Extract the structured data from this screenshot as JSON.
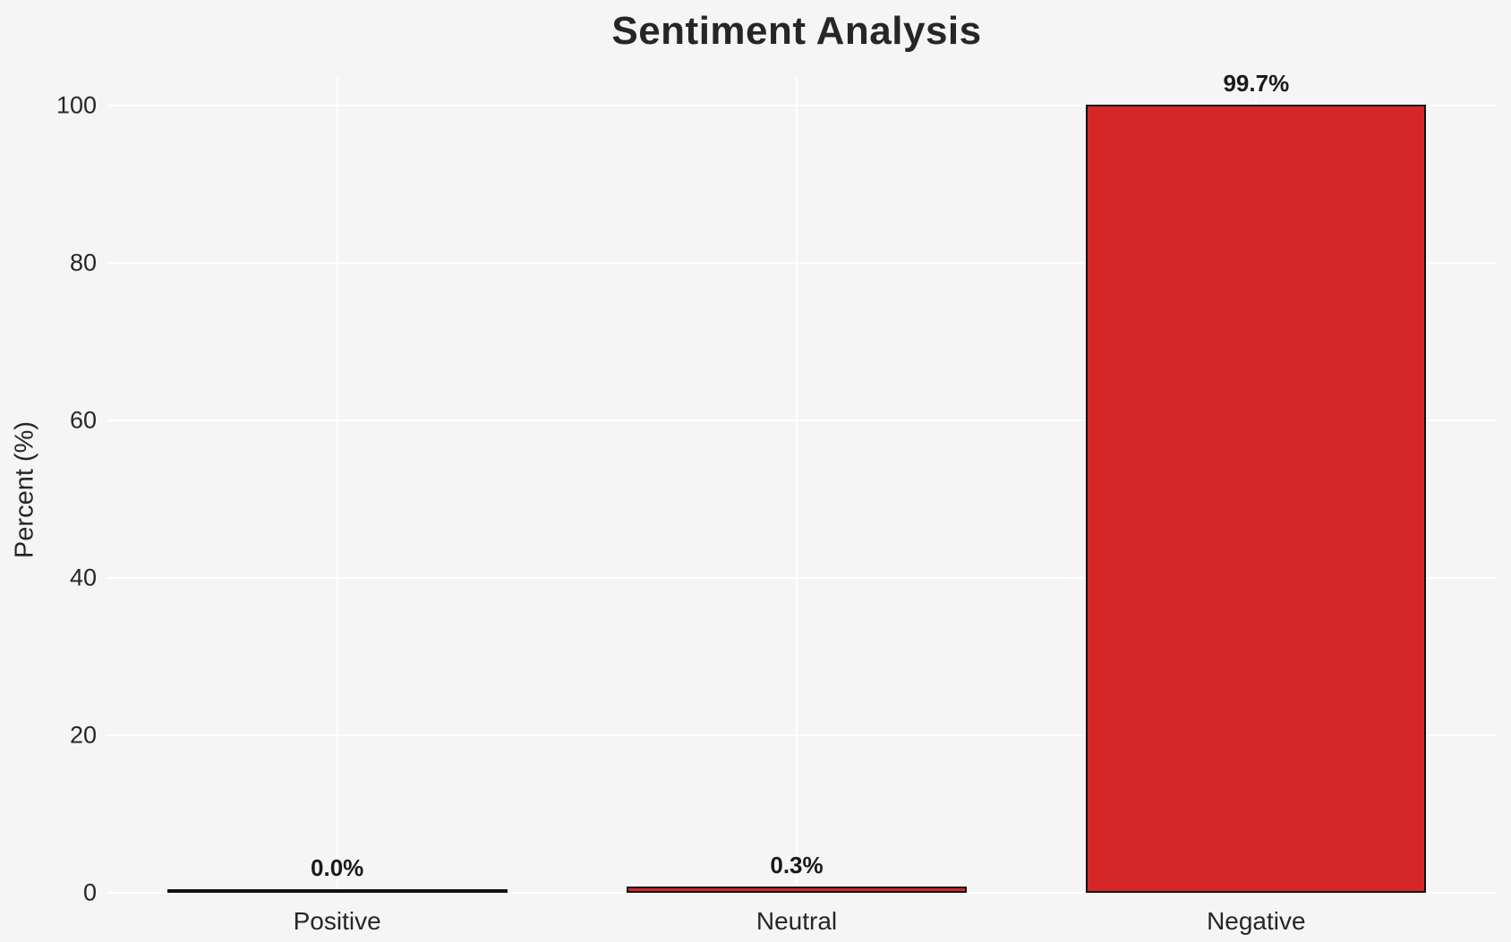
{
  "chart_data": {
    "type": "bar",
    "title": "Sentiment Analysis",
    "categories": [
      "Positive",
      "Neutral",
      "Negative"
    ],
    "values": [
      0.0,
      0.3,
      99.7
    ],
    "value_labels": [
      "0.0%",
      "0.3%",
      "99.7%"
    ],
    "xlabel": "",
    "ylabel": "Percent (%)",
    "yticks": [
      0,
      20,
      40,
      60,
      80,
      100
    ],
    "ylim": [
      0,
      105
    ],
    "grid": "on",
    "legend": "none",
    "colors": {
      "background": "#f5f5f6",
      "gridline": "#ffffff",
      "text": "#262626",
      "bar_fill": "#d62728",
      "bar_edge": "#111111"
    }
  }
}
